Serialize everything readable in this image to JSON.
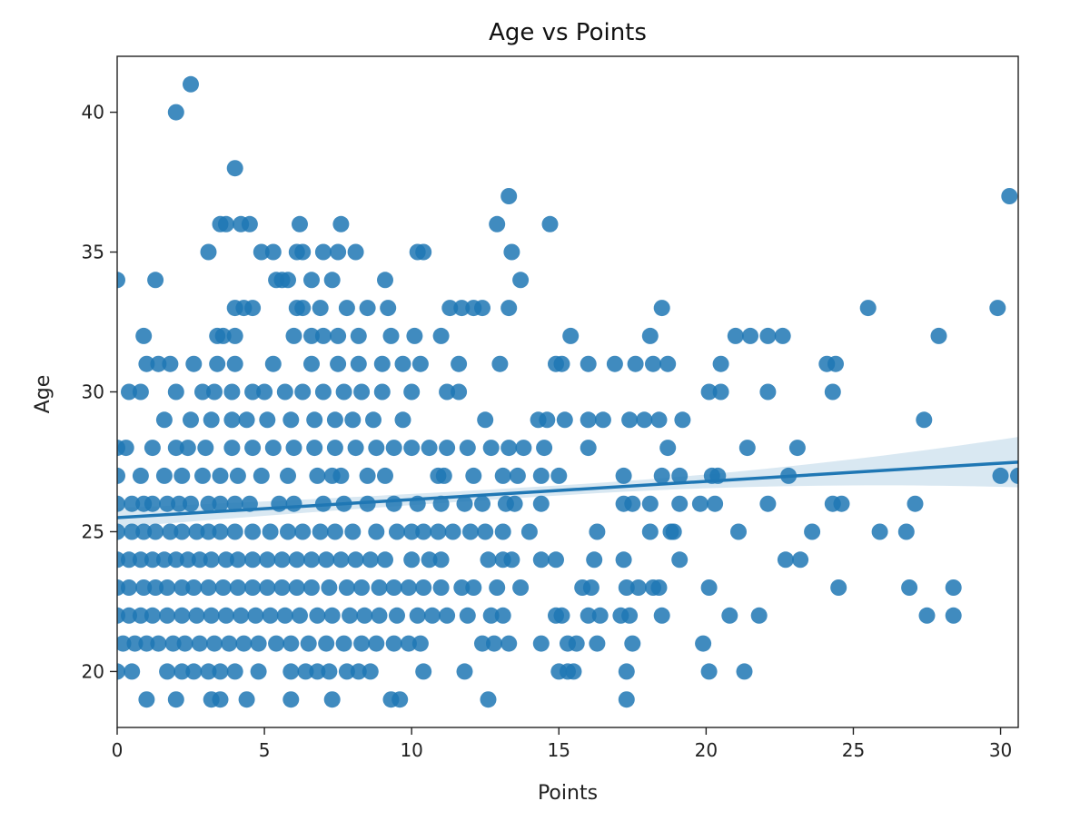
{
  "chart_data": {
    "type": "scatter",
    "title": "Age vs Points",
    "xlabel": "Points",
    "ylabel": "Age",
    "xlim": [
      0,
      30.6
    ],
    "ylim": [
      18,
      42
    ],
    "xticks": [
      "0",
      "5",
      "10",
      "15",
      "20",
      "25",
      "30"
    ],
    "yticks": [
      "20",
      "25",
      "30",
      "35",
      "40"
    ],
    "grid": false,
    "colors": {
      "points": "#1f77b4",
      "line": "#1f77b4",
      "band": "#1f77b4"
    },
    "regression": {
      "intercept": 25.5,
      "slope": 0.065,
      "ci_at_left": 0.35,
      "ci_at_mid": 0.18,
      "ci_at_right": 0.9
    },
    "points": [
      [
        0,
        34
      ],
      [
        2.0,
        40
      ],
      [
        2.5,
        41
      ],
      [
        4.0,
        38
      ],
      [
        13.3,
        37
      ],
      [
        30.3,
        37
      ],
      [
        3.5,
        36
      ],
      [
        3.7,
        36
      ],
      [
        4.2,
        36
      ],
      [
        4.5,
        36
      ],
      [
        6.2,
        36
      ],
      [
        7.6,
        36
      ],
      [
        12.9,
        36
      ],
      [
        14.7,
        36
      ],
      [
        3.1,
        35
      ],
      [
        4.9,
        35
      ],
      [
        5.3,
        35
      ],
      [
        6.1,
        35
      ],
      [
        6.3,
        35
      ],
      [
        7.0,
        35
      ],
      [
        7.5,
        35
      ],
      [
        8.1,
        35
      ],
      [
        10.2,
        35
      ],
      [
        10.4,
        35
      ],
      [
        13.4,
        35
      ],
      [
        1.3,
        34
      ],
      [
        5.4,
        34
      ],
      [
        5.6,
        34
      ],
      [
        5.8,
        34
      ],
      [
        6.6,
        34
      ],
      [
        7.3,
        34
      ],
      [
        9.1,
        34
      ],
      [
        13.7,
        34
      ],
      [
        4.0,
        33
      ],
      [
        4.3,
        33
      ],
      [
        4.6,
        33
      ],
      [
        6.1,
        33
      ],
      [
        6.3,
        33
      ],
      [
        6.9,
        33
      ],
      [
        7.8,
        33
      ],
      [
        8.5,
        33
      ],
      [
        9.2,
        33
      ],
      [
        11.3,
        33
      ],
      [
        11.7,
        33
      ],
      [
        12.1,
        33
      ],
      [
        12.4,
        33
      ],
      [
        13.3,
        33
      ],
      [
        18.5,
        33
      ],
      [
        25.5,
        33
      ],
      [
        29.9,
        33
      ],
      [
        0.9,
        32
      ],
      [
        3.4,
        32
      ],
      [
        3.6,
        32
      ],
      [
        4.0,
        32
      ],
      [
        6.0,
        32
      ],
      [
        6.6,
        32
      ],
      [
        7.0,
        32
      ],
      [
        7.5,
        32
      ],
      [
        8.2,
        32
      ],
      [
        9.3,
        32
      ],
      [
        10.1,
        32
      ],
      [
        11.0,
        32
      ],
      [
        15.4,
        32
      ],
      [
        18.1,
        32
      ],
      [
        21.0,
        32
      ],
      [
        21.5,
        32
      ],
      [
        22.1,
        32
      ],
      [
        22.6,
        32
      ],
      [
        27.9,
        32
      ],
      [
        1.0,
        31
      ],
      [
        1.4,
        31
      ],
      [
        1.8,
        31
      ],
      [
        2.6,
        31
      ],
      [
        3.4,
        31
      ],
      [
        4.0,
        31
      ],
      [
        5.3,
        31
      ],
      [
        6.6,
        31
      ],
      [
        7.5,
        31
      ],
      [
        8.2,
        31
      ],
      [
        9.0,
        31
      ],
      [
        9.7,
        31
      ],
      [
        10.3,
        31
      ],
      [
        11.6,
        31
      ],
      [
        13.0,
        31
      ],
      [
        14.9,
        31
      ],
      [
        15.1,
        31
      ],
      [
        16.0,
        31
      ],
      [
        16.9,
        31
      ],
      [
        17.6,
        31
      ],
      [
        18.2,
        31
      ],
      [
        18.7,
        31
      ],
      [
        20.5,
        31
      ],
      [
        24.1,
        31
      ],
      [
        24.4,
        31
      ],
      [
        0.4,
        30
      ],
      [
        0.8,
        30
      ],
      [
        2.0,
        30
      ],
      [
        2.9,
        30
      ],
      [
        3.3,
        30
      ],
      [
        3.9,
        30
      ],
      [
        4.6,
        30
      ],
      [
        5.0,
        30
      ],
      [
        5.7,
        30
      ],
      [
        6.3,
        30
      ],
      [
        7.0,
        30
      ],
      [
        7.7,
        30
      ],
      [
        8.3,
        30
      ],
      [
        9.0,
        30
      ],
      [
        10.0,
        30
      ],
      [
        11.2,
        30
      ],
      [
        11.6,
        30
      ],
      [
        20.1,
        30
      ],
      [
        20.5,
        30
      ],
      [
        22.1,
        30
      ],
      [
        24.3,
        30
      ],
      [
        1.6,
        29
      ],
      [
        2.5,
        29
      ],
      [
        3.2,
        29
      ],
      [
        3.9,
        29
      ],
      [
        4.4,
        29
      ],
      [
        5.1,
        29
      ],
      [
        5.9,
        29
      ],
      [
        6.7,
        29
      ],
      [
        7.4,
        29
      ],
      [
        8.0,
        29
      ],
      [
        8.7,
        29
      ],
      [
        9.7,
        29
      ],
      [
        12.5,
        29
      ],
      [
        14.3,
        29
      ],
      [
        14.6,
        29
      ],
      [
        15.2,
        29
      ],
      [
        16.0,
        29
      ],
      [
        16.5,
        29
      ],
      [
        17.4,
        29
      ],
      [
        17.9,
        29
      ],
      [
        18.4,
        29
      ],
      [
        19.2,
        29
      ],
      [
        27.4,
        29
      ],
      [
        0,
        28
      ],
      [
        0.3,
        28
      ],
      [
        1.2,
        28
      ],
      [
        2.0,
        28
      ],
      [
        2.4,
        28
      ],
      [
        3.0,
        28
      ],
      [
        3.9,
        28
      ],
      [
        4.6,
        28
      ],
      [
        5.3,
        28
      ],
      [
        6.0,
        28
      ],
      [
        6.7,
        28
      ],
      [
        7.4,
        28
      ],
      [
        8.1,
        28
      ],
      [
        8.8,
        28
      ],
      [
        9.4,
        28
      ],
      [
        10.0,
        28
      ],
      [
        10.6,
        28
      ],
      [
        11.2,
        28
      ],
      [
        11.9,
        28
      ],
      [
        12.7,
        28
      ],
      [
        13.3,
        28
      ],
      [
        13.8,
        28
      ],
      [
        14.5,
        28
      ],
      [
        16.0,
        28
      ],
      [
        18.7,
        28
      ],
      [
        21.4,
        28
      ],
      [
        23.1,
        28
      ],
      [
        0,
        27
      ],
      [
        0.8,
        27
      ],
      [
        1.6,
        27
      ],
      [
        2.2,
        27
      ],
      [
        2.9,
        27
      ],
      [
        3.5,
        27
      ],
      [
        4.1,
        27
      ],
      [
        4.9,
        27
      ],
      [
        5.8,
        27
      ],
      [
        6.8,
        27
      ],
      [
        7.3,
        27
      ],
      [
        7.6,
        27
      ],
      [
        8.5,
        27
      ],
      [
        9.1,
        27
      ],
      [
        10.9,
        27
      ],
      [
        11.1,
        27
      ],
      [
        12.1,
        27
      ],
      [
        13.1,
        27
      ],
      [
        13.6,
        27
      ],
      [
        14.4,
        27
      ],
      [
        15.0,
        27
      ],
      [
        17.2,
        27
      ],
      [
        18.5,
        27
      ],
      [
        19.1,
        27
      ],
      [
        20.2,
        27
      ],
      [
        20.4,
        27
      ],
      [
        22.8,
        27
      ],
      [
        30.0,
        27
      ],
      [
        30.6,
        27
      ],
      [
        0,
        26
      ],
      [
        0.5,
        26
      ],
      [
        0.9,
        26
      ],
      [
        1.2,
        26
      ],
      [
        1.7,
        26
      ],
      [
        2.1,
        26
      ],
      [
        2.5,
        26
      ],
      [
        3.1,
        26
      ],
      [
        3.5,
        26
      ],
      [
        4.0,
        26
      ],
      [
        4.5,
        26
      ],
      [
        5.5,
        26
      ],
      [
        6.0,
        26
      ],
      [
        7.0,
        26
      ],
      [
        7.7,
        26
      ],
      [
        8.5,
        26
      ],
      [
        9.4,
        26
      ],
      [
        10.2,
        26
      ],
      [
        11.0,
        26
      ],
      [
        11.8,
        26
      ],
      [
        12.4,
        26
      ],
      [
        13.2,
        26
      ],
      [
        13.5,
        26
      ],
      [
        14.4,
        26
      ],
      [
        17.2,
        26
      ],
      [
        17.5,
        26
      ],
      [
        18.1,
        26
      ],
      [
        19.1,
        26
      ],
      [
        19.8,
        26
      ],
      [
        20.3,
        26
      ],
      [
        22.1,
        26
      ],
      [
        24.3,
        26
      ],
      [
        24.6,
        26
      ],
      [
        27.1,
        26
      ],
      [
        0,
        25
      ],
      [
        0.5,
        25
      ],
      [
        0.9,
        25
      ],
      [
        1.3,
        25
      ],
      [
        1.8,
        25
      ],
      [
        2.2,
        25
      ],
      [
        2.7,
        25
      ],
      [
        3.1,
        25
      ],
      [
        3.5,
        25
      ],
      [
        4.0,
        25
      ],
      [
        4.6,
        25
      ],
      [
        5.2,
        25
      ],
      [
        5.8,
        25
      ],
      [
        6.3,
        25
      ],
      [
        6.9,
        25
      ],
      [
        7.4,
        25
      ],
      [
        8.0,
        25
      ],
      [
        8.8,
        25
      ],
      [
        9.5,
        25
      ],
      [
        10.0,
        25
      ],
      [
        10.4,
        25
      ],
      [
        10.9,
        25
      ],
      [
        11.4,
        25
      ],
      [
        12.0,
        25
      ],
      [
        12.5,
        25
      ],
      [
        13.1,
        25
      ],
      [
        14.0,
        25
      ],
      [
        16.3,
        25
      ],
      [
        18.1,
        25
      ],
      [
        18.8,
        25
      ],
      [
        18.9,
        25
      ],
      [
        21.1,
        25
      ],
      [
        23.6,
        25
      ],
      [
        25.9,
        25
      ],
      [
        26.8,
        25
      ],
      [
        0,
        24
      ],
      [
        0.4,
        24
      ],
      [
        0.8,
        24
      ],
      [
        1.2,
        24
      ],
      [
        1.6,
        24
      ],
      [
        2.0,
        24
      ],
      [
        2.4,
        24
      ],
      [
        2.8,
        24
      ],
      [
        3.2,
        24
      ],
      [
        3.7,
        24
      ],
      [
        4.1,
        24
      ],
      [
        4.6,
        24
      ],
      [
        5.1,
        24
      ],
      [
        5.6,
        24
      ],
      [
        6.1,
        24
      ],
      [
        6.6,
        24
      ],
      [
        7.1,
        24
      ],
      [
        7.6,
        24
      ],
      [
        8.1,
        24
      ],
      [
        8.6,
        24
      ],
      [
        9.1,
        24
      ],
      [
        10.0,
        24
      ],
      [
        10.6,
        24
      ],
      [
        11.0,
        24
      ],
      [
        12.6,
        24
      ],
      [
        13.1,
        24
      ],
      [
        13.4,
        24
      ],
      [
        14.4,
        24
      ],
      [
        14.9,
        24
      ],
      [
        16.2,
        24
      ],
      [
        17.2,
        24
      ],
      [
        19.1,
        24
      ],
      [
        22.7,
        24
      ],
      [
        23.2,
        24
      ],
      [
        0,
        23
      ],
      [
        0.4,
        23
      ],
      [
        0.9,
        23
      ],
      [
        1.3,
        23
      ],
      [
        1.7,
        23
      ],
      [
        2.2,
        23
      ],
      [
        2.6,
        23
      ],
      [
        3.1,
        23
      ],
      [
        3.6,
        23
      ],
      [
        4.1,
        23
      ],
      [
        4.6,
        23
      ],
      [
        5.1,
        23
      ],
      [
        5.6,
        23
      ],
      [
        6.1,
        23
      ],
      [
        6.6,
        23
      ],
      [
        7.2,
        23
      ],
      [
        7.8,
        23
      ],
      [
        8.3,
        23
      ],
      [
        8.9,
        23
      ],
      [
        9.4,
        23
      ],
      [
        9.9,
        23
      ],
      [
        10.4,
        23
      ],
      [
        11.0,
        23
      ],
      [
        11.7,
        23
      ],
      [
        12.1,
        23
      ],
      [
        12.9,
        23
      ],
      [
        13.7,
        23
      ],
      [
        15.8,
        23
      ],
      [
        16.1,
        23
      ],
      [
        17.3,
        23
      ],
      [
        17.7,
        23
      ],
      [
        18.2,
        23
      ],
      [
        18.4,
        23
      ],
      [
        20.1,
        23
      ],
      [
        24.5,
        23
      ],
      [
        26.9,
        23
      ],
      [
        28.4,
        23
      ],
      [
        0,
        22
      ],
      [
        0.4,
        22
      ],
      [
        0.8,
        22
      ],
      [
        1.2,
        22
      ],
      [
        1.7,
        22
      ],
      [
        2.2,
        22
      ],
      [
        2.7,
        22
      ],
      [
        3.2,
        22
      ],
      [
        3.7,
        22
      ],
      [
        4.2,
        22
      ],
      [
        4.7,
        22
      ],
      [
        5.2,
        22
      ],
      [
        5.7,
        22
      ],
      [
        6.2,
        22
      ],
      [
        6.8,
        22
      ],
      [
        7.3,
        22
      ],
      [
        7.9,
        22
      ],
      [
        8.4,
        22
      ],
      [
        8.9,
        22
      ],
      [
        9.5,
        22
      ],
      [
        10.2,
        22
      ],
      [
        10.7,
        22
      ],
      [
        11.2,
        22
      ],
      [
        11.9,
        22
      ],
      [
        12.7,
        22
      ],
      [
        13.1,
        22
      ],
      [
        14.9,
        22
      ],
      [
        15.1,
        22
      ],
      [
        16.0,
        22
      ],
      [
        16.4,
        22
      ],
      [
        17.1,
        22
      ],
      [
        17.4,
        22
      ],
      [
        18.5,
        22
      ],
      [
        20.8,
        22
      ],
      [
        21.8,
        22
      ],
      [
        27.5,
        22
      ],
      [
        28.4,
        22
      ],
      [
        0.2,
        21
      ],
      [
        0.6,
        21
      ],
      [
        1.0,
        21
      ],
      [
        1.4,
        21
      ],
      [
        1.9,
        21
      ],
      [
        2.3,
        21
      ],
      [
        2.8,
        21
      ],
      [
        3.3,
        21
      ],
      [
        3.8,
        21
      ],
      [
        4.3,
        21
      ],
      [
        4.8,
        21
      ],
      [
        5.4,
        21
      ],
      [
        5.9,
        21
      ],
      [
        6.5,
        21
      ],
      [
        7.1,
        21
      ],
      [
        7.7,
        21
      ],
      [
        8.3,
        21
      ],
      [
        8.8,
        21
      ],
      [
        9.4,
        21
      ],
      [
        9.9,
        21
      ],
      [
        10.3,
        21
      ],
      [
        12.4,
        21
      ],
      [
        12.8,
        21
      ],
      [
        13.3,
        21
      ],
      [
        14.4,
        21
      ],
      [
        15.3,
        21
      ],
      [
        15.6,
        21
      ],
      [
        16.3,
        21
      ],
      [
        17.5,
        21
      ],
      [
        19.9,
        21
      ],
      [
        0,
        20
      ],
      [
        0.5,
        20
      ],
      [
        1.7,
        20
      ],
      [
        2.2,
        20
      ],
      [
        2.6,
        20
      ],
      [
        3.1,
        20
      ],
      [
        3.5,
        20
      ],
      [
        4.0,
        20
      ],
      [
        4.8,
        20
      ],
      [
        5.9,
        20
      ],
      [
        6.4,
        20
      ],
      [
        6.8,
        20
      ],
      [
        7.2,
        20
      ],
      [
        7.8,
        20
      ],
      [
        8.2,
        20
      ],
      [
        8.6,
        20
      ],
      [
        10.4,
        20
      ],
      [
        11.8,
        20
      ],
      [
        15.0,
        20
      ],
      [
        15.3,
        20
      ],
      [
        15.5,
        20
      ],
      [
        17.3,
        20
      ],
      [
        20.1,
        20
      ],
      [
        21.3,
        20
      ],
      [
        1.0,
        19
      ],
      [
        2.0,
        19
      ],
      [
        3.2,
        19
      ],
      [
        3.5,
        19
      ],
      [
        4.4,
        19
      ],
      [
        5.9,
        19
      ],
      [
        7.3,
        19
      ],
      [
        9.3,
        19
      ],
      [
        9.6,
        19
      ],
      [
        12.6,
        19
      ],
      [
        17.3,
        19
      ]
    ]
  }
}
